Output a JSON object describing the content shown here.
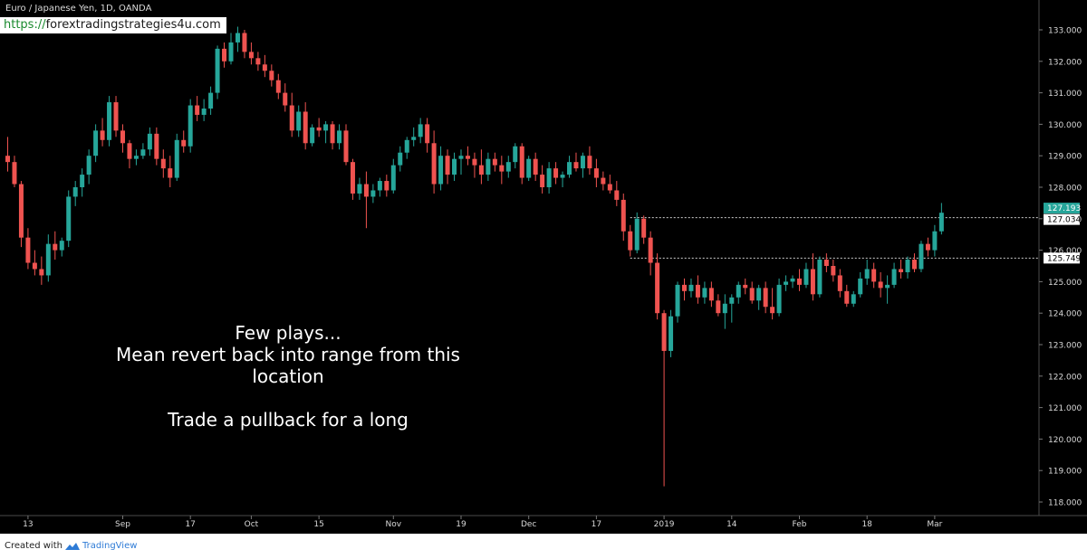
{
  "header": {
    "symbol_title": "Euro / Japanese Yen, 1D, OANDA",
    "url_scheme": "https://",
    "url_host": "forextradingstrategies4u.com"
  },
  "annotation": {
    "lines": [
      "Few plays...",
      "Mean revert back into range from this",
      "location",
      "",
      "Trade a pullback for a long"
    ]
  },
  "footer": {
    "created_with": "Created with",
    "brand": "TradingView"
  },
  "colors": {
    "background": "#000000",
    "up": "#26a69a",
    "down": "#ef5350",
    "axis_text": "#d9d9d9",
    "price_tag_current": "#26a69a",
    "price_tag_level": "#ffffff"
  },
  "chart_data": {
    "type": "candlestick",
    "symbol": "EURJPY",
    "timeframe": "1D",
    "y_axis": {
      "ticks": [
        118,
        119,
        120,
        121,
        122,
        123,
        124,
        125,
        126,
        127,
        128,
        129,
        130,
        131,
        132,
        133
      ],
      "tick_labels": [
        "118.000",
        "119.000",
        "120.000",
        "121.000",
        "122.000",
        "123.000",
        "124.000",
        "125.000",
        "126.000",
        "127.000",
        "128.000",
        "129.000",
        "130.000",
        "131.000",
        "132.000",
        "133.000"
      ],
      "range": [
        117.6,
        133.7
      ]
    },
    "x_axis": {
      "labels": [
        "13",
        "Sep",
        "17",
        "Oct",
        "15",
        "Nov",
        "19",
        "Dec",
        "17",
        "2019",
        "14",
        "Feb",
        "18",
        "Mar"
      ],
      "label_bar_index": [
        3,
        17,
        27,
        36,
        46,
        57,
        67,
        77,
        87,
        97,
        107,
        117,
        127,
        137
      ]
    },
    "price_labels": [
      {
        "value": "127.193",
        "kind": "current"
      },
      {
        "value": "127.034",
        "kind": "level"
      },
      {
        "value": "125.749",
        "kind": "level"
      }
    ],
    "levels": [
      {
        "value": 127.034,
        "from_bar": 92
      },
      {
        "value": 125.749,
        "from_bar": 92
      }
    ],
    "candles": [
      [
        129.0,
        129.6,
        128.5,
        128.8
      ],
      [
        128.8,
        129.0,
        128.0,
        128.1
      ],
      [
        128.1,
        128.2,
        126.1,
        126.4
      ],
      [
        126.4,
        126.7,
        125.4,
        125.6
      ],
      [
        125.6,
        126.0,
        125.2,
        125.4
      ],
      [
        125.4,
        125.8,
        124.9,
        125.2
      ],
      [
        125.2,
        126.5,
        125.0,
        126.2
      ],
      [
        126.2,
        126.6,
        125.7,
        126.0
      ],
      [
        126.0,
        126.4,
        125.8,
        126.3
      ],
      [
        126.3,
        127.9,
        126.1,
        127.7
      ],
      [
        127.7,
        128.2,
        127.4,
        128.0
      ],
      [
        128.0,
        128.6,
        127.7,
        128.4
      ],
      [
        128.4,
        129.2,
        128.1,
        129.0
      ],
      [
        129.0,
        130.0,
        128.8,
        129.8
      ],
      [
        129.8,
        130.2,
        129.3,
        129.5
      ],
      [
        129.5,
        130.9,
        129.3,
        130.7
      ],
      [
        130.7,
        130.9,
        129.6,
        129.8
      ],
      [
        129.8,
        130.0,
        129.1,
        129.4
      ],
      [
        129.4,
        129.5,
        128.6,
        128.9
      ],
      [
        128.9,
        129.2,
        128.7,
        129.0
      ],
      [
        129.0,
        129.4,
        128.9,
        129.2
      ],
      [
        129.2,
        129.9,
        129.0,
        129.7
      ],
      [
        129.7,
        129.9,
        128.7,
        128.9
      ],
      [
        128.9,
        129.2,
        128.3,
        128.6
      ],
      [
        128.6,
        129.0,
        128.0,
        128.3
      ],
      [
        128.3,
        129.7,
        128.2,
        129.5
      ],
      [
        129.5,
        129.8,
        129.1,
        129.3
      ],
      [
        129.3,
        130.8,
        129.1,
        130.6
      ],
      [
        130.6,
        130.9,
        130.1,
        130.3
      ],
      [
        130.3,
        130.8,
        130.1,
        130.5
      ],
      [
        130.5,
        131.2,
        130.3,
        131.0
      ],
      [
        131.0,
        132.5,
        130.8,
        132.4
      ],
      [
        132.4,
        132.6,
        131.8,
        132.0
      ],
      [
        132.0,
        132.9,
        131.9,
        132.6
      ],
      [
        132.6,
        133.1,
        132.3,
        132.9
      ],
      [
        132.9,
        133.0,
        132.1,
        132.3
      ],
      [
        132.3,
        132.6,
        131.9,
        132.1
      ],
      [
        132.1,
        132.3,
        131.7,
        131.9
      ],
      [
        131.9,
        132.2,
        131.5,
        131.7
      ],
      [
        131.7,
        131.9,
        131.2,
        131.4
      ],
      [
        131.4,
        131.6,
        130.8,
        131.0
      ],
      [
        131.0,
        131.3,
        130.4,
        130.6
      ],
      [
        130.6,
        131.0,
        129.6,
        129.8
      ],
      [
        129.8,
        130.6,
        129.6,
        130.4
      ],
      [
        130.4,
        130.7,
        129.2,
        129.4
      ],
      [
        129.4,
        130.0,
        129.3,
        129.9
      ],
      [
        129.9,
        130.2,
        129.6,
        129.8
      ],
      [
        129.8,
        130.1,
        129.4,
        130.0
      ],
      [
        130.0,
        130.1,
        129.2,
        129.4
      ],
      [
        129.4,
        130.0,
        129.2,
        129.8
      ],
      [
        129.8,
        130.0,
        128.7,
        128.8
      ],
      [
        128.8,
        128.9,
        127.6,
        127.8
      ],
      [
        127.8,
        128.3,
        127.6,
        128.1
      ],
      [
        128.1,
        128.5,
        126.7,
        127.7
      ],
      [
        127.7,
        128.1,
        127.5,
        127.9
      ],
      [
        127.9,
        128.3,
        127.7,
        128.2
      ],
      [
        128.2,
        128.4,
        127.7,
        127.9
      ],
      [
        127.9,
        128.9,
        127.8,
        128.7
      ],
      [
        128.7,
        129.3,
        128.5,
        129.1
      ],
      [
        129.1,
        129.6,
        128.9,
        129.5
      ],
      [
        129.5,
        129.9,
        129.3,
        129.6
      ],
      [
        129.6,
        130.2,
        129.4,
        130.0
      ],
      [
        130.0,
        130.2,
        129.1,
        129.4
      ],
      [
        129.4,
        129.8,
        127.8,
        128.1
      ],
      [
        128.1,
        129.3,
        127.9,
        129.0
      ],
      [
        129.0,
        129.2,
        128.1,
        128.4
      ],
      [
        128.4,
        129.1,
        128.2,
        128.9
      ],
      [
        128.9,
        129.2,
        128.4,
        129.0
      ],
      [
        129.0,
        129.3,
        128.7,
        128.9
      ],
      [
        128.9,
        129.1,
        128.3,
        128.7
      ],
      [
        128.7,
        129.2,
        128.1,
        128.4
      ],
      [
        128.4,
        129.1,
        128.2,
        128.9
      ],
      [
        128.9,
        129.1,
        128.5,
        128.7
      ],
      [
        128.7,
        129.0,
        128.1,
        128.5
      ],
      [
        128.5,
        129.0,
        128.3,
        128.8
      ],
      [
        128.8,
        129.4,
        128.6,
        129.3
      ],
      [
        129.3,
        129.4,
        128.1,
        128.3
      ],
      [
        128.3,
        129.0,
        128.2,
        128.9
      ],
      [
        128.9,
        129.1,
        128.2,
        128.4
      ],
      [
        128.4,
        128.7,
        127.8,
        128.0
      ],
      [
        128.0,
        128.8,
        127.8,
        128.6
      ],
      [
        128.6,
        128.8,
        128.1,
        128.3
      ],
      [
        128.3,
        128.5,
        128.0,
        128.4
      ],
      [
        128.4,
        129.0,
        128.3,
        128.8
      ],
      [
        128.8,
        129.1,
        128.5,
        128.6
      ],
      [
        128.6,
        129.1,
        128.3,
        129.0
      ],
      [
        129.0,
        129.3,
        128.4,
        128.6
      ],
      [
        128.6,
        128.9,
        128.0,
        128.3
      ],
      [
        128.3,
        128.5,
        127.9,
        128.1
      ],
      [
        128.1,
        128.4,
        127.8,
        127.9
      ],
      [
        127.9,
        128.2,
        127.4,
        127.6
      ],
      [
        127.6,
        127.8,
        126.3,
        126.6
      ],
      [
        126.6,
        126.8,
        125.8,
        126.0
      ],
      [
        126.0,
        127.2,
        125.9,
        127.0
      ],
      [
        127.0,
        127.1,
        126.2,
        126.4
      ],
      [
        126.4,
        126.6,
        125.2,
        125.6
      ],
      [
        125.6,
        125.9,
        123.8,
        124.0
      ],
      [
        124.0,
        124.1,
        118.5,
        122.8
      ],
      [
        122.8,
        124.1,
        122.6,
        123.9
      ],
      [
        123.9,
        125.0,
        123.7,
        124.9
      ],
      [
        124.9,
        125.1,
        124.4,
        124.7
      ],
      [
        124.7,
        125.1,
        124.5,
        124.9
      ],
      [
        124.9,
        125.2,
        124.3,
        124.5
      ],
      [
        124.5,
        125.0,
        124.3,
        124.8
      ],
      [
        124.8,
        125.0,
        124.2,
        124.4
      ],
      [
        124.4,
        124.6,
        123.9,
        124.0
      ],
      [
        124.0,
        124.6,
        123.5,
        124.3
      ],
      [
        124.3,
        124.6,
        123.7,
        124.5
      ],
      [
        124.5,
        125.0,
        124.3,
        124.9
      ],
      [
        124.9,
        125.1,
        124.6,
        124.8
      ],
      [
        124.8,
        125.0,
        124.3,
        124.4
      ],
      [
        124.4,
        124.9,
        124.1,
        124.8
      ],
      [
        124.8,
        125.0,
        124.0,
        124.2
      ],
      [
        124.2,
        124.8,
        123.8,
        124.0
      ],
      [
        124.0,
        125.1,
        123.9,
        124.9
      ],
      [
        124.9,
        125.2,
        124.7,
        125.0
      ],
      [
        125.0,
        125.2,
        124.8,
        125.1
      ],
      [
        125.1,
        125.4,
        124.7,
        124.9
      ],
      [
        124.9,
        125.6,
        124.8,
        125.4
      ],
      [
        125.4,
        125.9,
        124.4,
        124.6
      ],
      [
        124.6,
        125.8,
        124.5,
        125.7
      ],
      [
        125.7,
        125.9,
        125.3,
        125.5
      ],
      [
        125.5,
        125.7,
        125.0,
        125.2
      ],
      [
        125.2,
        125.4,
        124.5,
        124.7
      ],
      [
        124.7,
        124.9,
        124.2,
        124.3
      ],
      [
        124.3,
        124.7,
        124.2,
        124.6
      ],
      [
        124.6,
        125.3,
        124.5,
        125.1
      ],
      [
        125.1,
        125.7,
        124.9,
        125.4
      ],
      [
        125.4,
        125.6,
        124.8,
        125.0
      ],
      [
        125.0,
        125.3,
        124.5,
        124.8
      ],
      [
        124.8,
        125.2,
        124.3,
        124.9
      ],
      [
        124.9,
        125.6,
        124.8,
        125.4
      ],
      [
        125.4,
        125.7,
        125.1,
        125.3
      ],
      [
        125.3,
        125.8,
        125.1,
        125.7
      ],
      [
        125.7,
        125.9,
        125.3,
        125.4
      ],
      [
        125.4,
        126.3,
        125.3,
        126.2
      ],
      [
        126.2,
        126.4,
        125.8,
        126.0
      ],
      [
        126.0,
        126.8,
        125.8,
        126.6
      ],
      [
        126.6,
        127.5,
        126.5,
        127.19
      ]
    ]
  }
}
